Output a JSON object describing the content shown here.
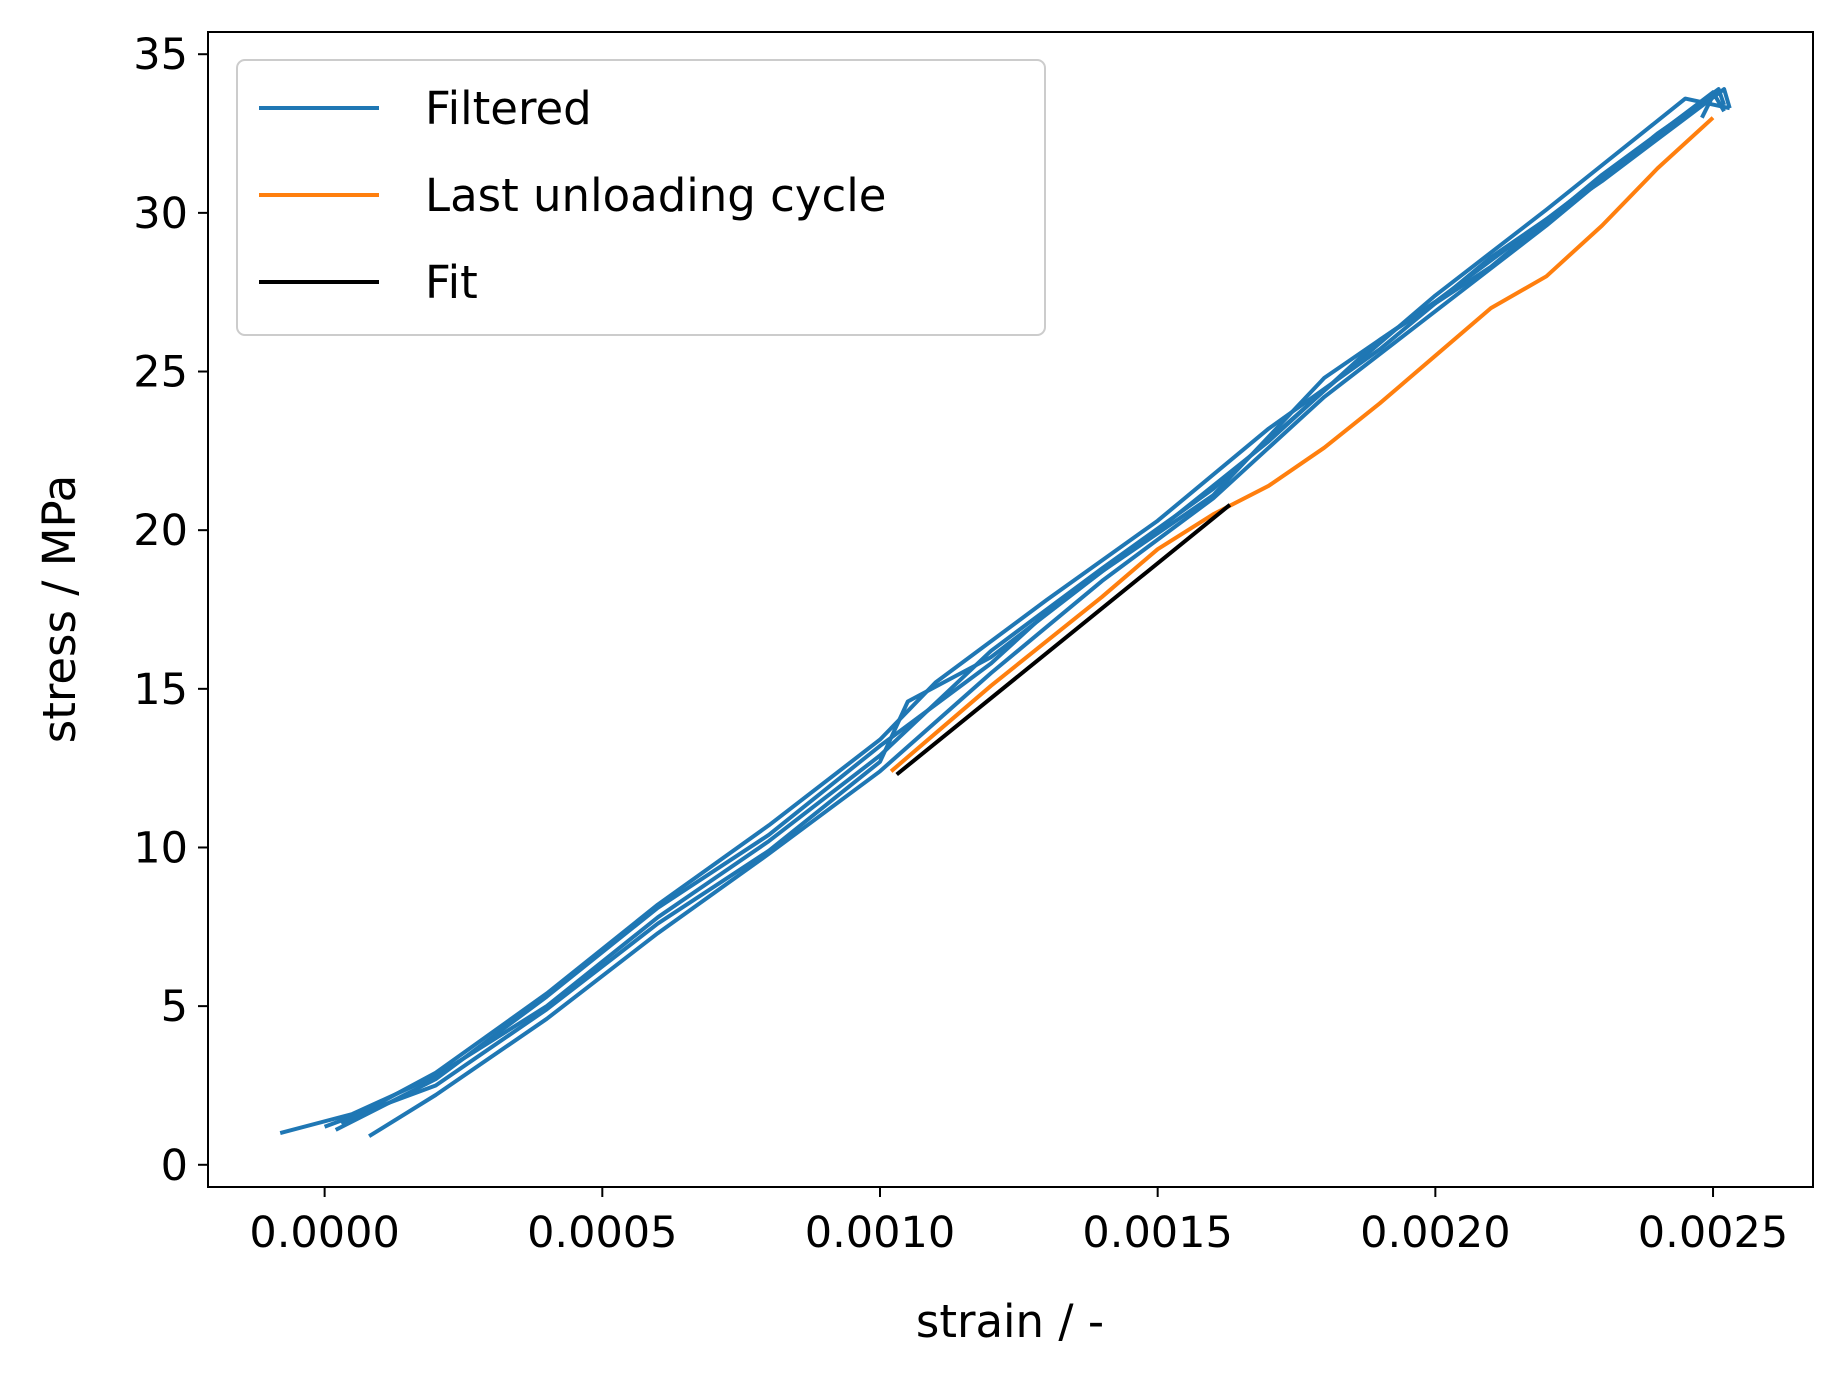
{
  "chart_data": {
    "type": "line",
    "title": "",
    "xlabel": "strain / -",
    "ylabel": "stress / MPa",
    "xlim": [
      -0.00021,
      0.00268
    ],
    "ylim": [
      -0.7,
      35.7
    ],
    "xticks": [
      0.0,
      0.0005,
      0.001,
      0.0015,
      0.002,
      0.0025
    ],
    "xtick_labels": [
      "0.0000",
      "0.0005",
      "0.0010",
      "0.0015",
      "0.0020",
      "0.0025"
    ],
    "yticks": [
      0,
      5,
      10,
      15,
      20,
      25,
      30,
      35
    ],
    "ytick_labels": [
      "0",
      "5",
      "10",
      "15",
      "20",
      "25",
      "30",
      "35"
    ],
    "grid": false,
    "legend_position": "top-left",
    "series": [
      {
        "name": "Filtered",
        "color": "#1f77b4",
        "cycles": [
          [
            [
              -8e-05,
              1.0
            ],
            [
              5e-05,
              1.6
            ],
            [
              0.0002,
              2.8
            ],
            [
              0.0004,
              5.0
            ],
            [
              0.0006,
              7.8
            ],
            [
              0.0008,
              10.2
            ],
            [
              0.001,
              12.9
            ],
            [
              0.0012,
              16.2
            ],
            [
              0.0014,
              18.8
            ],
            [
              0.0016,
              21.3
            ],
            [
              0.0018,
              24.4
            ],
            [
              0.002,
              27.4
            ],
            [
              0.0022,
              30.1
            ],
            [
              0.00245,
              33.6
            ],
            [
              0.00253,
              33.3
            ]
          ],
          [
            [
              0.0,
              1.2
            ],
            [
              0.0002,
              2.5
            ],
            [
              0.0004,
              4.9
            ],
            [
              0.0006,
              7.6
            ],
            [
              0.0008,
              9.9
            ],
            [
              0.001,
              12.7
            ],
            [
              0.00105,
              14.6
            ],
            [
              0.0012,
              16.0
            ],
            [
              0.0014,
              18.7
            ],
            [
              0.0016,
              21.1
            ],
            [
              0.0018,
              24.8
            ],
            [
              0.002,
              27.2
            ],
            [
              0.0022,
              29.8
            ],
            [
              0.0025,
              33.8
            ],
            [
              0.00252,
              33.2
            ]
          ],
          [
            [
              2e-05,
              1.1
            ],
            [
              0.0002,
              2.7
            ],
            [
              0.0004,
              5.3
            ],
            [
              0.0006,
              8.1
            ],
            [
              0.0008,
              10.4
            ],
            [
              0.001,
              13.2
            ],
            [
              0.0012,
              15.8
            ],
            [
              0.0013,
              17.4
            ],
            [
              0.0015,
              20.0
            ],
            [
              0.0017,
              22.8
            ],
            [
              0.0019,
              26.0
            ],
            [
              0.0021,
              28.3
            ],
            [
              0.0023,
              31.2
            ],
            [
              0.00251,
              33.9
            ],
            [
              0.00252,
              33.4
            ]
          ],
          [
            [
              8e-05,
              0.9
            ],
            [
              0.0002,
              2.2
            ],
            [
              0.0004,
              4.6
            ],
            [
              0.0006,
              7.3
            ],
            [
              0.0008,
              9.8
            ],
            [
              0.001,
              12.4
            ],
            [
              0.0012,
              15.5
            ],
            [
              0.0014,
              18.4
            ],
            [
              0.0016,
              21.0
            ],
            [
              0.0018,
              24.2
            ],
            [
              0.002,
              26.9
            ],
            [
              0.0022,
              29.6
            ],
            [
              0.0024,
              32.5
            ],
            [
              0.0025,
              33.7
            ],
            [
              0.00248,
              33.0
            ]
          ],
          [
            [
              3e-05,
              1.3
            ],
            [
              0.0002,
              2.9
            ],
            [
              0.0004,
              5.4
            ],
            [
              0.0006,
              8.2
            ],
            [
              0.0008,
              10.7
            ],
            [
              0.001,
              13.4
            ],
            [
              0.0011,
              15.2
            ],
            [
              0.0013,
              17.8
            ],
            [
              0.0015,
              20.3
            ],
            [
              0.0017,
              23.2
            ],
            [
              0.0019,
              25.7
            ],
            [
              0.0021,
              28.6
            ],
            [
              0.0023,
              31.0
            ],
            [
              0.00252,
              33.9
            ],
            [
              0.00253,
              33.3
            ]
          ]
        ]
      },
      {
        "name": "Last unloading cycle",
        "color": "#ff7f0e",
        "values": [
          [
            0.0025,
            33.0
          ],
          [
            0.0024,
            31.4
          ],
          [
            0.0023,
            29.6
          ],
          [
            0.0022,
            28.0
          ],
          [
            0.0021,
            27.0
          ],
          [
            0.002,
            25.5
          ],
          [
            0.0019,
            24.0
          ],
          [
            0.0018,
            22.6
          ],
          [
            0.0017,
            21.4
          ],
          [
            0.0016,
            20.5
          ],
          [
            0.0015,
            19.4
          ],
          [
            0.0014,
            17.9
          ],
          [
            0.0013,
            16.5
          ],
          [
            0.0012,
            15.1
          ],
          [
            0.0011,
            13.6
          ],
          [
            0.00102,
            12.4
          ]
        ]
      },
      {
        "name": "Fit",
        "color": "#000000",
        "values": [
          [
            0.00103,
            12.3
          ],
          [
            0.00163,
            20.8
          ]
        ]
      }
    ]
  }
}
